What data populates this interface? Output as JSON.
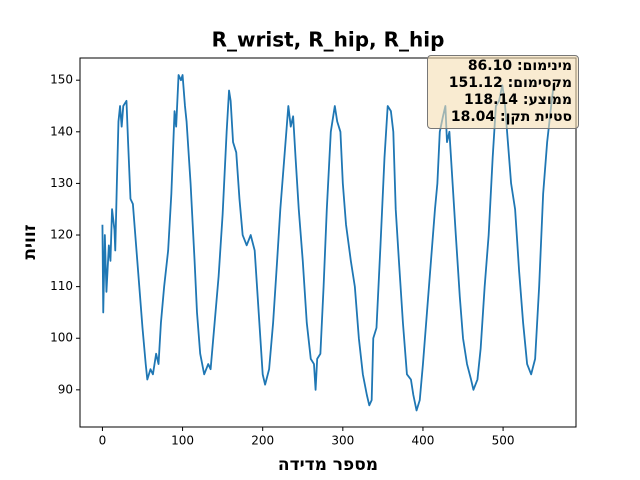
{
  "chart_data": {
    "type": "line",
    "title": "R_wrist, R_hip, R_hip",
    "x_label": "מספר מדידה",
    "y_label": "זווית",
    "annotations": [
      "מינימום: 86.10",
      "מקסימום: 151.12",
      "ממוצע: 118.14",
      "סטיית תקן: 18.04"
    ],
    "x": [
      0,
      1,
      3,
      5,
      8,
      10,
      12,
      15,
      16,
      18,
      20,
      22,
      24,
      26,
      30,
      32,
      35,
      38,
      42,
      46,
      50,
      54,
      56,
      60,
      63,
      67,
      70,
      73,
      77,
      82,
      86,
      90,
      92,
      95,
      98,
      100,
      103,
      105,
      110,
      115,
      118,
      122,
      127,
      132,
      135,
      140,
      145,
      150,
      155,
      158,
      160,
      163,
      167,
      171,
      175,
      180,
      185,
      190,
      195,
      200,
      203,
      208,
      213,
      218,
      222,
      227,
      232,
      235,
      238,
      241,
      245,
      250,
      255,
      260,
      264,
      266,
      268,
      272,
      276,
      280,
      285,
      290,
      293,
      297,
      300,
      304,
      310,
      315,
      320,
      325,
      330,
      333,
      336,
      338,
      342,
      347,
      352,
      356,
      360,
      363,
      366,
      370,
      375,
      380,
      385,
      388,
      392,
      396,
      400,
      405,
      410,
      415,
      418,
      421,
      425,
      428,
      430,
      433,
      437,
      441,
      446,
      450,
      455,
      460,
      463,
      468,
      472,
      477,
      482,
      487,
      491,
      495,
      499,
      502,
      506,
      510,
      515,
      520,
      525,
      530,
      535,
      540,
      545,
      550,
      555,
      560,
      563
    ],
    "series": [
      {
        "name": "R_wrist, R_hip, R_hip",
        "color": "#1f77b4",
        "values": [
          122,
          105,
          120,
          109,
          118,
          115,
          125,
          121,
          117,
          130,
          142,
          145,
          141,
          145,
          146,
          138,
          127,
          126,
          118,
          110,
          102,
          95,
          92,
          94,
          93,
          97,
          95,
          103,
          110,
          117,
          128,
          144,
          141,
          151,
          150,
          151,
          145,
          142,
          130,
          115,
          105,
          97,
          93,
          95,
          94,
          103,
          112,
          124,
          140,
          148,
          146,
          138,
          136,
          127,
          120,
          118,
          120,
          117,
          105,
          93,
          91,
          94,
          103,
          115,
          125,
          135,
          145,
          141,
          143,
          135,
          125,
          115,
          103,
          96,
          95,
          90,
          96,
          97,
          110,
          125,
          140,
          145,
          142,
          140,
          130,
          122,
          115,
          110,
          100,
          93,
          89,
          87,
          88,
          100,
          102,
          118,
          135,
          145,
          144,
          140,
          125,
          115,
          103,
          93,
          92,
          89,
          86,
          88,
          95,
          105,
          115,
          125,
          130,
          140,
          143,
          145,
          138,
          140,
          130,
          120,
          108,
          100,
          95,
          92,
          90,
          92,
          98,
          110,
          120,
          135,
          145,
          146,
          149,
          146,
          138,
          130,
          125,
          113,
          103,
          95,
          93,
          96,
          110,
          128,
          138,
          145,
          149
        ]
      }
    ],
    "xlim": [
      -28,
      591
    ],
    "ylim": [
      82.8,
      154.3
    ],
    "xticks": [
      0,
      100,
      200,
      300,
      400,
      500
    ],
    "yticks": [
      90,
      100,
      110,
      120,
      130,
      140,
      150
    ]
  }
}
